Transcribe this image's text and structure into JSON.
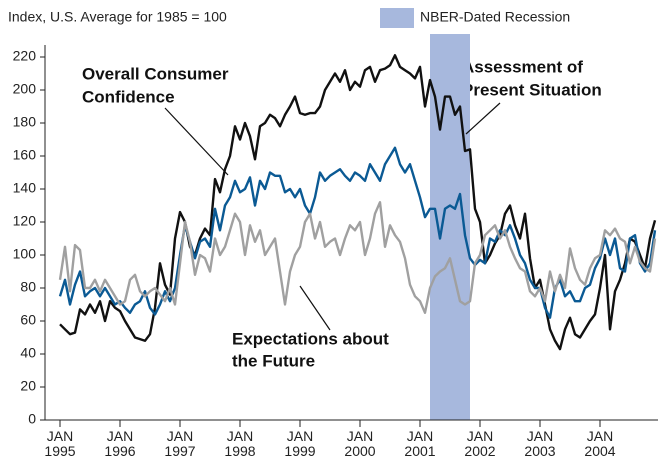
{
  "chart_data": {
    "type": "line",
    "y_axis_label": "Index, U.S. Average for 1985 = 100",
    "recession": {
      "label": "NBER-Dated Recession",
      "start": "2001-03",
      "end": "2001-11",
      "color": "#a7b8dd"
    },
    "x": [
      "1995-01",
      "1995-02",
      "1995-03",
      "1995-04",
      "1995-05",
      "1995-06",
      "1995-07",
      "1995-08",
      "1995-09",
      "1995-10",
      "1995-11",
      "1995-12",
      "1996-01",
      "1996-02",
      "1996-03",
      "1996-04",
      "1996-05",
      "1996-06",
      "1996-07",
      "1996-08",
      "1996-09",
      "1996-10",
      "1996-11",
      "1996-12",
      "1997-01",
      "1997-02",
      "1997-03",
      "1997-04",
      "1997-05",
      "1997-06",
      "1997-07",
      "1997-08",
      "1997-09",
      "1997-10",
      "1997-11",
      "1997-12",
      "1998-01",
      "1998-02",
      "1998-03",
      "1998-04",
      "1998-05",
      "1998-06",
      "1998-07",
      "1998-08",
      "1998-09",
      "1998-10",
      "1998-11",
      "1998-12",
      "1999-01",
      "1999-02",
      "1999-03",
      "1999-04",
      "1999-05",
      "1999-06",
      "1999-07",
      "1999-08",
      "1999-09",
      "1999-10",
      "1999-11",
      "1999-12",
      "2000-01",
      "2000-02",
      "2000-03",
      "2000-04",
      "2000-05",
      "2000-06",
      "2000-07",
      "2000-08",
      "2000-09",
      "2000-10",
      "2000-11",
      "2000-12",
      "2001-01",
      "2001-02",
      "2001-03",
      "2001-04",
      "2001-05",
      "2001-06",
      "2001-07",
      "2001-08",
      "2001-09",
      "2001-10",
      "2001-11",
      "2001-12",
      "2002-01",
      "2002-02",
      "2002-03",
      "2002-04",
      "2002-05",
      "2002-06",
      "2002-07",
      "2002-08",
      "2002-09",
      "2002-10",
      "2002-11",
      "2002-12",
      "2003-01",
      "2003-02",
      "2003-03",
      "2003-04",
      "2003-05",
      "2003-06",
      "2003-07",
      "2003-08",
      "2003-09",
      "2003-10",
      "2003-11",
      "2003-12",
      "2004-01",
      "2004-02",
      "2004-03",
      "2004-04",
      "2004-05",
      "2004-06",
      "2004-07",
      "2004-08",
      "2004-09",
      "2004-10",
      "2004-11",
      "2004-12"
    ],
    "series": [
      {
        "name": "Assessment of Present Situation",
        "color": "#111111",
        "values": [
          58,
          55,
          52,
          53,
          67,
          64,
          70,
          65,
          72,
          60,
          72,
          68,
          66,
          60,
          55,
          50,
          49,
          48,
          52,
          68,
          95,
          82,
          76,
          110,
          126,
          120,
          105,
          100,
          110,
          116,
          112,
          146,
          138,
          152,
          160,
          178,
          170,
          180,
          172,
          158,
          178,
          180,
          185,
          183,
          178,
          185,
          190,
          196,
          186,
          185,
          186,
          186,
          190,
          200,
          205,
          210,
          205,
          212,
          200,
          205,
          202,
          212,
          214,
          205,
          212,
          213,
          215,
          221,
          214,
          212,
          210,
          207,
          214,
          190,
          206,
          196,
          176,
          196,
          196,
          185,
          190,
          163,
          164,
          128,
          120,
          95,
          100,
          107,
          112,
          125,
          130,
          118,
          110,
          125,
          98,
          80,
          85,
          70,
          55,
          48,
          43,
          55,
          62,
          52,
          50,
          55,
          60,
          64,
          80,
          100,
          55,
          78,
          85,
          95,
          110,
          108,
          100,
          92,
          110,
          121
        ]
      },
      {
        "name": "Overall Consumer Confidence",
        "color": "#0b5a94",
        "values": [
          75,
          85,
          70,
          82,
          90,
          75,
          78,
          80,
          75,
          80,
          75,
          70,
          72,
          68,
          65,
          70,
          72,
          78,
          68,
          64,
          70,
          78,
          72,
          80,
          100,
          118,
          108,
          98,
          108,
          110,
          105,
          128,
          115,
          130,
          135,
          145,
          138,
          140,
          147,
          130,
          145,
          140,
          150,
          148,
          148,
          138,
          140,
          135,
          140,
          130,
          125,
          135,
          150,
          145,
          148,
          150,
          152,
          148,
          145,
          150,
          148,
          145,
          155,
          150,
          145,
          155,
          160,
          165,
          155,
          150,
          155,
          145,
          135,
          123,
          128,
          128,
          110,
          128,
          130,
          128,
          137,
          112,
          98,
          94,
          97,
          95,
          110,
          108,
          115,
          112,
          118,
          110,
          100,
          95,
          85,
          80,
          80,
          68,
          62,
          80,
          85,
          75,
          78,
          72,
          72,
          80,
          82,
          92,
          98,
          110,
          100,
          110,
          92,
          90,
          110,
          112,
          95,
          90,
          95,
          115
        ]
      },
      {
        "name": "Expectations about the Future",
        "color": "#a0a0a0",
        "values": [
          85,
          105,
          78,
          106,
          103,
          80,
          80,
          85,
          78,
          85,
          80,
          75,
          70,
          72,
          85,
          88,
          78,
          75,
          78,
          80,
          76,
          72,
          80,
          70,
          95,
          120,
          108,
          88,
          100,
          98,
          90,
          110,
          100,
          105,
          115,
          125,
          120,
          100,
          118,
          108,
          115,
          100,
          105,
          110,
          90,
          70,
          90,
          100,
          105,
          120,
          125,
          110,
          120,
          105,
          108,
          110,
          100,
          110,
          118,
          115,
          120,
          100,
          110,
          125,
          132,
          105,
          118,
          112,
          108,
          98,
          82,
          75,
          72,
          65,
          80,
          87,
          90,
          92,
          98,
          85,
          72,
          70,
          72,
          95,
          100,
          112,
          115,
          118,
          110,
          115,
          105,
          98,
          92,
          90,
          78,
          75,
          80,
          72,
          90,
          78,
          88,
          80,
          104,
          92,
          85,
          82,
          92,
          98,
          100,
          115,
          112,
          116,
          110,
          108,
          95,
          105,
          96,
          92,
          90,
          110
        ]
      }
    ],
    "annotations": [
      {
        "lines": [
          "Overall Consumer",
          "Confidence"
        ]
      },
      {
        "lines": [
          "Assessment of",
          "Present Situation"
        ]
      },
      {
        "lines": [
          "Expectations about",
          "the Future"
        ]
      }
    ],
    "xlim": [
      "1994-10",
      "2005-01"
    ],
    "xticks": [
      {
        "value": "1995-01",
        "label": "JAN 1995"
      },
      {
        "value": "1996-01",
        "label": "JAN 1996"
      },
      {
        "value": "1997-01",
        "label": "JAN 1997"
      },
      {
        "value": "1998-01",
        "label": "JAN 1998"
      },
      {
        "value": "1999-01",
        "label": "JAN 1999"
      },
      {
        "value": "2000-01",
        "label": "JAN 2000"
      },
      {
        "value": "2001-01",
        "label": "JAN 2001"
      },
      {
        "value": "2002-01",
        "label": "JAN 2002"
      },
      {
        "value": "2003-01",
        "label": "JAN 2003"
      },
      {
        "value": "2004-01",
        "label": "JAN 2004"
      }
    ],
    "ylim": [
      0,
      220
    ],
    "yticks": [
      0,
      20,
      40,
      60,
      80,
      100,
      120,
      140,
      160,
      180,
      200,
      220
    ],
    "grid": false
  }
}
